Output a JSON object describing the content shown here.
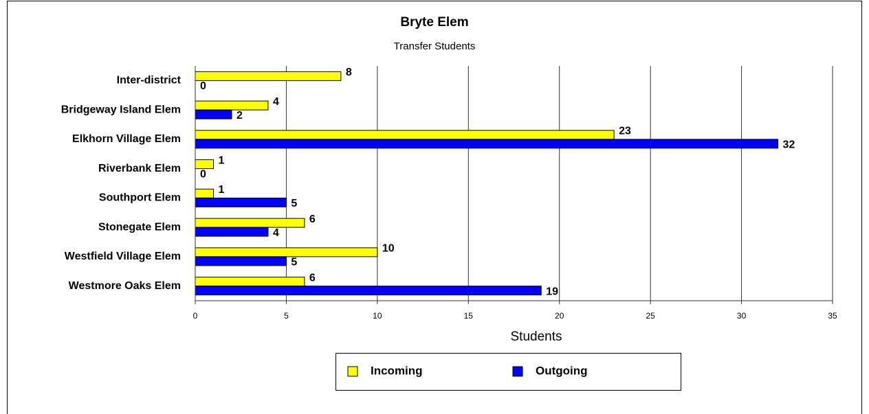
{
  "chart_data": {
    "type": "hbar",
    "title": "Bryte Elem",
    "subtitle": "Transfer Students",
    "x_label": "Students",
    "categories": [
      "Inter-district",
      "Bridgeway Island Elem",
      "Elkhorn Village Elem",
      "Riverbank Elem",
      "Southport Elem",
      "Stonegate Elem",
      "Westfield Village Elem",
      "Westmore Oaks Elem"
    ],
    "series": [
      {
        "name": "Incoming",
        "color": "#ffff00",
        "values": [
          8,
          4,
          23,
          1,
          1,
          6,
          10,
          6
        ]
      },
      {
        "name": "Outgoing",
        "color": "#0000ff",
        "values": [
          0,
          2,
          32,
          0,
          5,
          4,
          5,
          19
        ]
      }
    ],
    "xlim": [
      0,
      35
    ],
    "xticks": [
      0,
      5,
      10,
      15,
      20,
      25,
      30,
      35
    ],
    "grid": true,
    "legend": "bottom"
  }
}
